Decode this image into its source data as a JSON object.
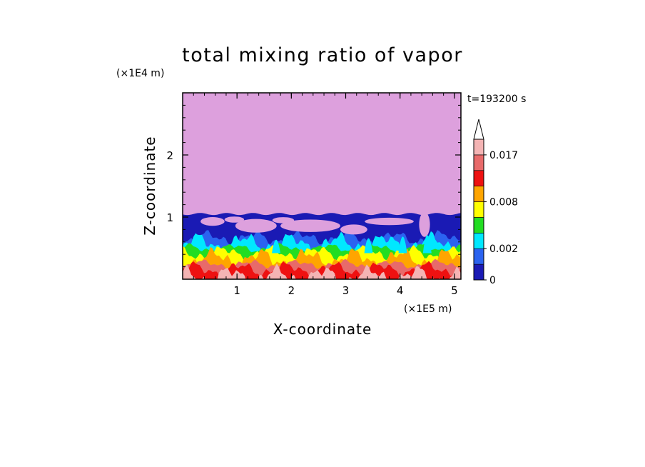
{
  "chart_data": {
    "type": "heatmap",
    "title": "total mixing ratio of vapor",
    "xlabel": "X-coordinate",
    "ylabel": "Z-coordinate",
    "x_unit": "(×1E5 m)",
    "y_unit": "(×1E4 m)",
    "time_label": "t=193200 s",
    "xlim": [
      0,
      5.12
    ],
    "ylim": [
      0,
      3.0
    ],
    "x_ticks": [
      {
        "value": 1,
        "label": "1"
      },
      {
        "value": 2,
        "label": "2"
      },
      {
        "value": 3,
        "label": "3"
      },
      {
        "value": 4,
        "label": "4"
      },
      {
        "value": 5,
        "label": "5"
      }
    ],
    "y_ticks": [
      {
        "value": 1,
        "label": "1"
      },
      {
        "value": 2,
        "label": "2"
      }
    ],
    "colorbar": {
      "levels": [
        0,
        0.0005,
        0.002,
        0.004,
        0.006,
        0.008,
        0.01,
        0.013,
        0.017,
        0.02
      ],
      "colors": [
        "#1a1ab4",
        "#2b63f0",
        "#00e8ff",
        "#22dd22",
        "#ffff00",
        "#ffa500",
        "#ee1111",
        "#e86a6a",
        "#f4b4b4"
      ],
      "tick_labels": [
        {
          "value": 0,
          "label": "0"
        },
        {
          "value": 0.002,
          "label": "0.002"
        },
        {
          "value": 0.008,
          "label": "0.008"
        },
        {
          "value": 0.017,
          "label": "0.017"
        }
      ],
      "extend": "max"
    },
    "background_value_color": "#dda0dd",
    "moist_layer_top": 1.05,
    "band_tops": [
      {
        "color": "#f4b4b4",
        "z": 0.05
      },
      {
        "color": "#ee1111",
        "z": 0.16
      },
      {
        "color": "#e86a6a",
        "z": 0.24
      },
      {
        "color": "#ffa500",
        "z": 0.33
      },
      {
        "color": "#ffff00",
        "z": 0.42
      },
      {
        "color": "#22dd22",
        "z": 0.5
      },
      {
        "color": "#00e8ff",
        "z": 0.58
      },
      {
        "color": "#2b63f0",
        "z": 0.66
      }
    ]
  }
}
